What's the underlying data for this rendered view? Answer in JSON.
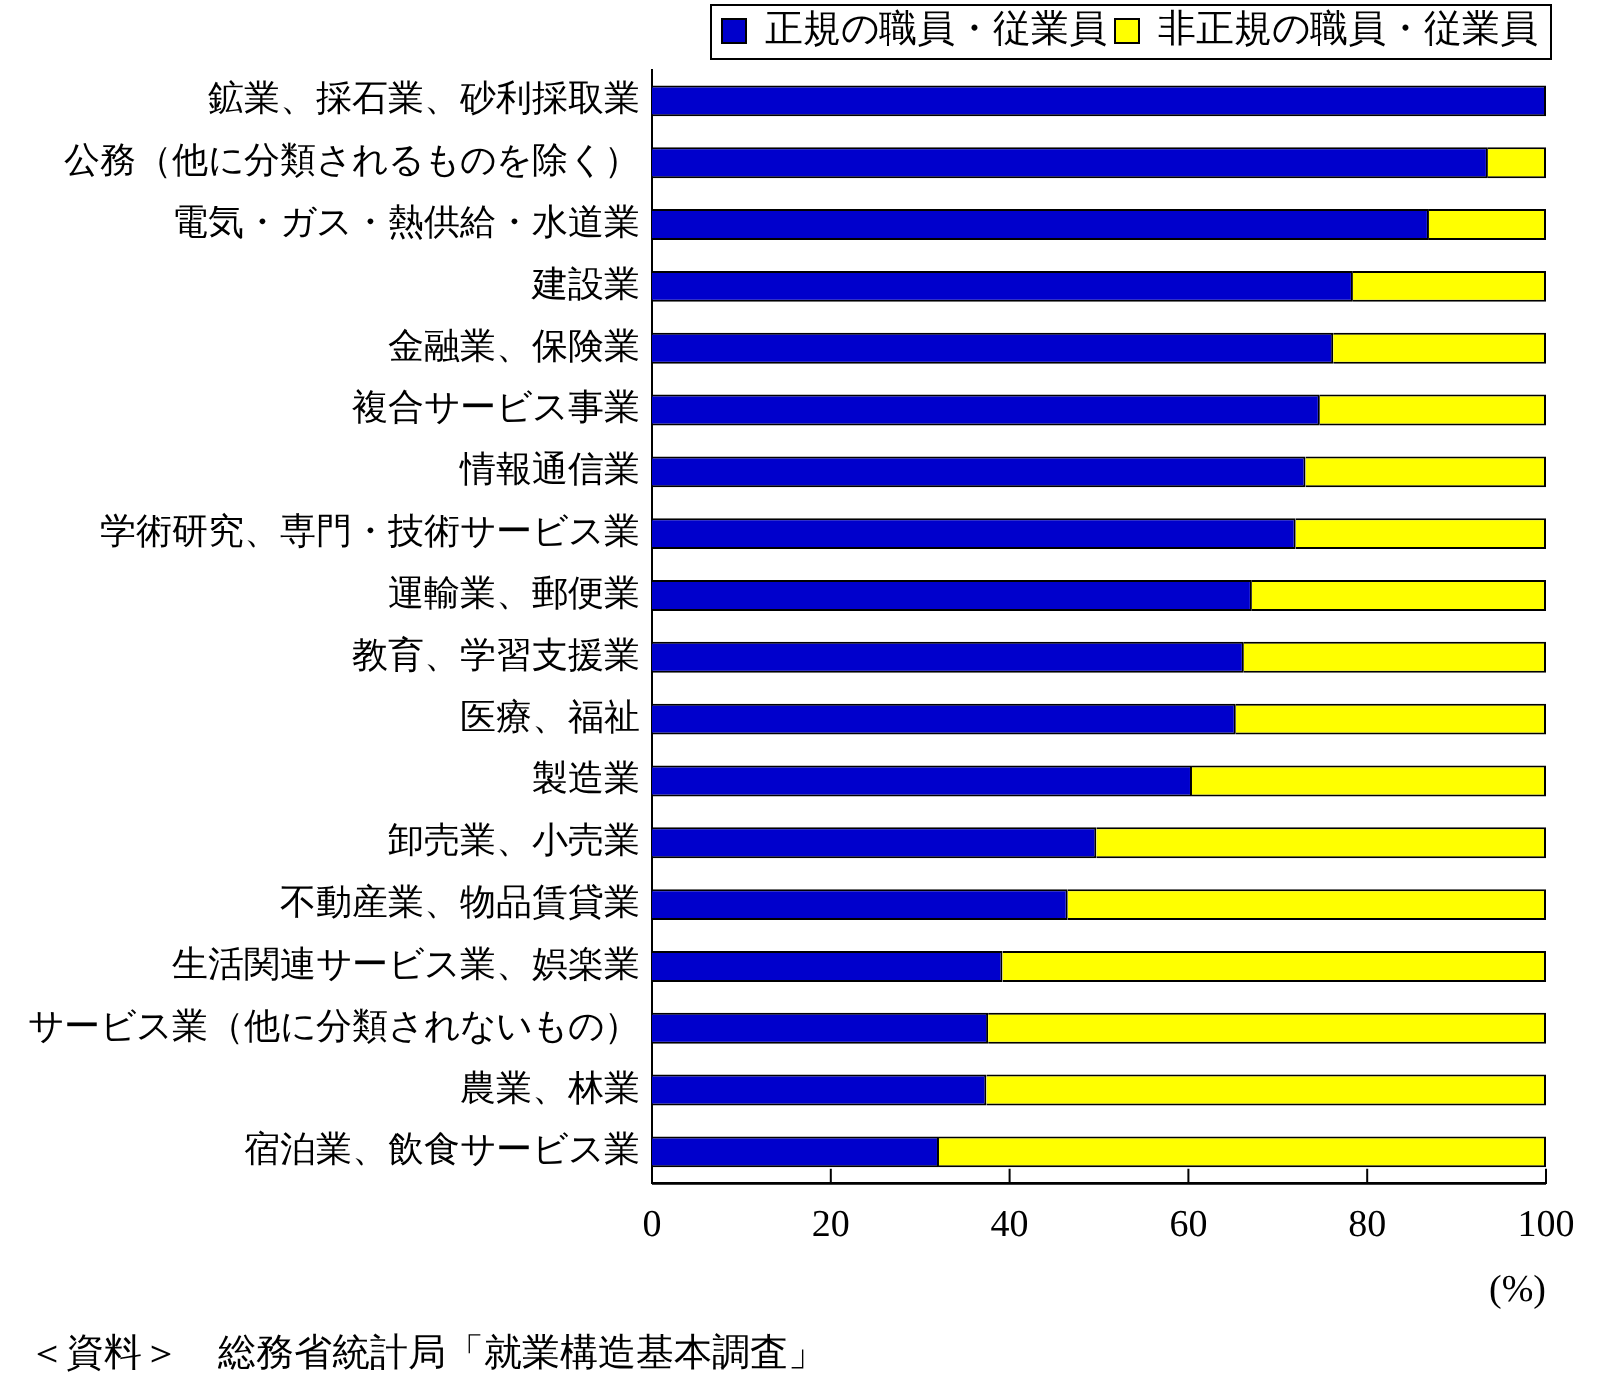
{
  "chart_data": {
    "type": "bar",
    "orientation": "horizontal",
    "stacked": true,
    "categories": [
      "鉱業、採石業、砂利採取業",
      "公務（他に分類されるものを除く）",
      "電気・ガス・熱供給・水道業",
      "建設業",
      "金融業、保険業",
      "複合サービス事業",
      "情報通信業",
      "学術研究、専門・技術サービス業",
      "運輸業、郵便業",
      "教育、学習支援業",
      "医療、福祉",
      "製造業",
      "卸売業、小売業",
      "不動産業、物品賃貸業",
      "生活関連サービス業、娯楽業",
      "サービス業（他に分類されないもの）",
      "農業、林業",
      "宿泊業、飲食サービス業"
    ],
    "series": [
      {
        "name": "正規の職員・従業員",
        "color": "#0000cc",
        "values": [
          100,
          93.5,
          86.9,
          78.4,
          76.2,
          74.7,
          73.1,
          72.0,
          67.1,
          66.2,
          65.3,
          60.4,
          49.7,
          46.5,
          39.2,
          37.6,
          37.4,
          32.1
        ]
      },
      {
        "name": "非正規の職員・従業員",
        "color": "#ffff00",
        "values": [
          0,
          6.5,
          13.1,
          21.6,
          23.8,
          25.3,
          26.9,
          28.0,
          32.9,
          33.8,
          34.7,
          39.6,
          50.3,
          53.5,
          60.8,
          62.4,
          62.6,
          67.9
        ]
      }
    ],
    "xlim": [
      0,
      100
    ],
    "xticks": [
      0,
      20,
      40,
      60,
      80,
      100
    ],
    "xlabel": "(%)",
    "grid": false,
    "legend": "top right",
    "annotations": [
      "＜資料＞　総務省統計局「就業構造基本調査」"
    ]
  }
}
